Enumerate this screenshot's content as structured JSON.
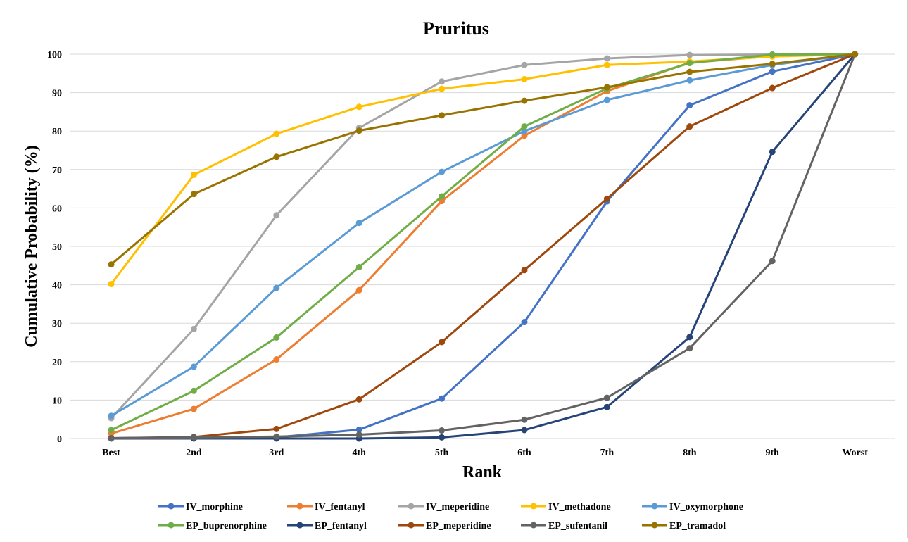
{
  "chart_data": {
    "type": "line",
    "title": "Pruritus",
    "xlabel": "Rank",
    "ylabel": "Cumulative Probability (%)",
    "ylim": [
      0,
      100
    ],
    "yticks": [
      0,
      10,
      20,
      30,
      40,
      50,
      60,
      70,
      80,
      90,
      100
    ],
    "categories": [
      "Best",
      "2nd",
      "3rd",
      "4th",
      "5th",
      "6th",
      "7th",
      "8th",
      "9th",
      "Worst"
    ],
    "grid": "horizontal",
    "legend_position": "bottom",
    "series": [
      {
        "name": "IV_morphine",
        "color": "#4472C4",
        "values": [
          0.1,
          0.2,
          0.3,
          2.3,
          10.4,
          30.3,
          61.7,
          86.7,
          95.5,
          100
        ]
      },
      {
        "name": "IV_fentanyl",
        "color": "#ED7D31",
        "values": [
          1.3,
          7.7,
          20.6,
          38.6,
          61.8,
          78.8,
          90.4,
          97.8,
          99.5,
          100
        ]
      },
      {
        "name": "IV_meperidine",
        "color": "#A5A5A5",
        "values": [
          5.3,
          28.5,
          58.1,
          80.8,
          92.9,
          97.2,
          98.9,
          99.8,
          99.9,
          100
        ]
      },
      {
        "name": "IV_methadone",
        "color": "#FFC000",
        "values": [
          40.2,
          68.6,
          79.3,
          86.3,
          91.0,
          93.5,
          97.2,
          98.1,
          99.4,
          100
        ]
      },
      {
        "name": "IV_oxymorphone",
        "color": "#5B9BD5",
        "values": [
          5.9,
          18.7,
          39.2,
          56.1,
          69.4,
          80.0,
          88.1,
          93.2,
          97.2,
          100
        ]
      },
      {
        "name": "EP_buprenorphine",
        "color": "#70AD47",
        "values": [
          2.2,
          12.4,
          26.3,
          44.6,
          63.0,
          81.2,
          91.1,
          97.7,
          99.9,
          100
        ]
      },
      {
        "name": "EP_fentanyl",
        "color": "#264478",
        "values": [
          0.0,
          0.0,
          0.0,
          0.0,
          0.3,
          2.2,
          8.2,
          26.4,
          74.6,
          100
        ]
      },
      {
        "name": "EP_meperidine",
        "color": "#9E480E",
        "values": [
          0.1,
          0.4,
          2.5,
          10.2,
          25.1,
          43.8,
          62.4,
          81.2,
          91.2,
          100
        ]
      },
      {
        "name": "EP_sufentanil",
        "color": "#636363",
        "values": [
          0.1,
          0.3,
          0.5,
          1.0,
          2.1,
          4.9,
          10.6,
          23.5,
          46.2,
          100
        ]
      },
      {
        "name": "EP_tramadol",
        "color": "#997300",
        "values": [
          45.3,
          63.6,
          73.3,
          80.1,
          84.1,
          87.9,
          91.4,
          95.4,
          97.5,
          100
        ]
      }
    ]
  }
}
